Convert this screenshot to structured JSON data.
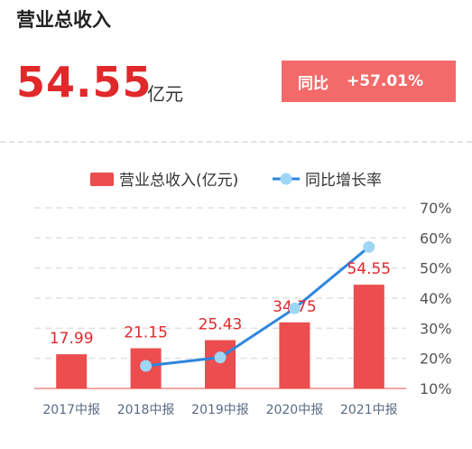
{
  "header": {
    "title": "营业总收入",
    "value": "54.55",
    "unit": "亿元",
    "yoy_label": "同比",
    "yoy_value": "+57.01%"
  },
  "colors": {
    "bar": "#ec4d4f",
    "line": "#2e86de",
    "point": "#9fd6f5",
    "value_text": "#e0292b",
    "badge": "#f46a6a"
  },
  "chart_data": {
    "type": "bar",
    "categories": [
      "2017中报",
      "2018中报",
      "2019中报",
      "2020中报",
      "2021中报"
    ],
    "series": [
      {
        "name": "营业总收入(亿元)",
        "type": "bar",
        "values": [
          17.99,
          21.15,
          25.43,
          34.75,
          54.55
        ],
        "labels": [
          "17.99",
          "21.15",
          "25.43",
          "34.75",
          "54.55"
        ]
      },
      {
        "name": "同比增长率",
        "type": "line",
        "values": [
          null,
          17.5,
          20.3,
          36.6,
          57.0
        ]
      }
    ],
    "right_axis": {
      "ticks": [
        "70%",
        "60%",
        "50%",
        "40%",
        "30%",
        "20%",
        "10%"
      ],
      "ylim": [
        10,
        70
      ]
    },
    "grid": true,
    "legend": "top"
  }
}
